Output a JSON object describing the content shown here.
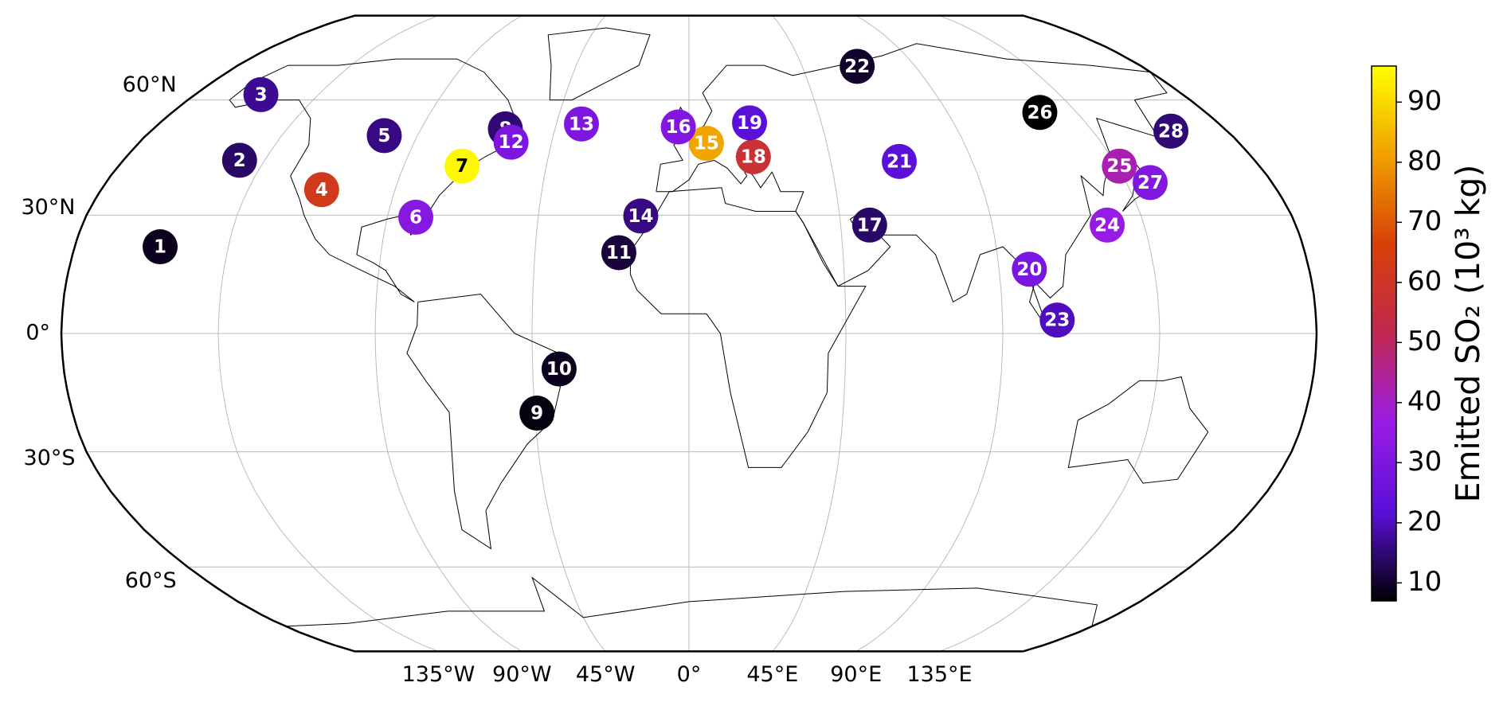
{
  "map": {
    "type": "point-map",
    "projection": "robinson",
    "grid": true,
    "lat_ticks": [
      {
        "value": 60,
        "label": "60°N"
      },
      {
        "value": 30,
        "label": "30°N"
      },
      {
        "value": 0,
        "label": "0°"
      },
      {
        "value": -30,
        "label": "30°S"
      },
      {
        "value": -60,
        "label": "60°S"
      }
    ],
    "lon_ticks": [
      {
        "value": -135,
        "label": "135°W"
      },
      {
        "value": -90,
        "label": "90°W"
      },
      {
        "value": -45,
        "label": "45°W"
      },
      {
        "value": 0,
        "label": "0°"
      },
      {
        "value": 45,
        "label": "45°E"
      },
      {
        "value": 90,
        "label": "90°E"
      },
      {
        "value": 135,
        "label": "135°E"
      }
    ],
    "markers": [
      {
        "label": "1",
        "lon": -155,
        "lat": 22,
        "value": 9
      },
      {
        "label": "2",
        "lon": -143,
        "lat": 44,
        "value": 14
      },
      {
        "label": "3",
        "lon": -156,
        "lat": 61.5,
        "value": 17
      },
      {
        "label": "4",
        "lon": -112.5,
        "lat": 36.5,
        "value": 62
      },
      {
        "label": "5",
        "lon": -101,
        "lat": 50.4,
        "value": 16
      },
      {
        "label": "6",
        "lon": -81.5,
        "lat": 29.5,
        "value": 32
      },
      {
        "label": "7",
        "lon": -71.6,
        "lat": 42.5,
        "value": 95
      },
      {
        "label": "8",
        "lon": -61.7,
        "lat": 52.2,
        "value": 15
      },
      {
        "label": "9",
        "lon": -44.4,
        "lat": -20.2,
        "value": 8
      },
      {
        "label": "10",
        "lon": -37.4,
        "lat": -9,
        "value": 9
      },
      {
        "label": "11",
        "lon": -20.5,
        "lat": 20.5,
        "value": 11
      },
      {
        "label": "12",
        "lon": -58.3,
        "lat": 48.7,
        "value": 30
      },
      {
        "label": "13",
        "lon": -36.5,
        "lat": 53.5,
        "value": 30
      },
      {
        "label": "14",
        "lon": -14.4,
        "lat": 29.8,
        "value": 16
      },
      {
        "label": "15",
        "lon": 5.7,
        "lat": 48.4,
        "value": 82
      },
      {
        "label": "16",
        "lon": -3.6,
        "lat": 52.7,
        "value": 31
      },
      {
        "label": "17",
        "lon": 53.6,
        "lat": 27.5,
        "value": 14
      },
      {
        "label": "18",
        "lon": 20.6,
        "lat": 44.9,
        "value": 57
      },
      {
        "label": "19",
        "lon": 20.6,
        "lat": 53.8,
        "value": 22
      },
      {
        "label": "20",
        "lon": 98.8,
        "lat": 16.3,
        "value": 29
      },
      {
        "label": "21",
        "lon": 66.8,
        "lat": 43.7,
        "value": 22
      },
      {
        "label": "22",
        "lon": 66.9,
        "lat": 69.7,
        "value": 10
      },
      {
        "label": "23",
        "lon": 105.7,
        "lat": 3.4,
        "value": 20
      },
      {
        "label": "24",
        "lon": 124.1,
        "lat": 27.5,
        "value": 36
      },
      {
        "label": "25",
        "lon": 135.8,
        "lat": 42.5,
        "value": 42
      },
      {
        "label": "26",
        "lon": 122.2,
        "lat": 56.6,
        "value": 7
      },
      {
        "label": "27",
        "lon": 142.4,
        "lat": 38.3,
        "value": 31
      },
      {
        "label": "28",
        "lon": 161.2,
        "lat": 51.6,
        "value": 15
      }
    ],
    "colorbar": {
      "label": "Emitted SO₂ (10³ kg)",
      "lim": [
        7,
        96
      ],
      "ticks": [
        10,
        20,
        30,
        40,
        50,
        60,
        70,
        80,
        90
      ],
      "colormap": [
        "#000000",
        "#5a10d8",
        "#9a1ce6",
        "#c02850",
        "#d84008",
        "#f0a000",
        "#ffff00"
      ]
    }
  }
}
